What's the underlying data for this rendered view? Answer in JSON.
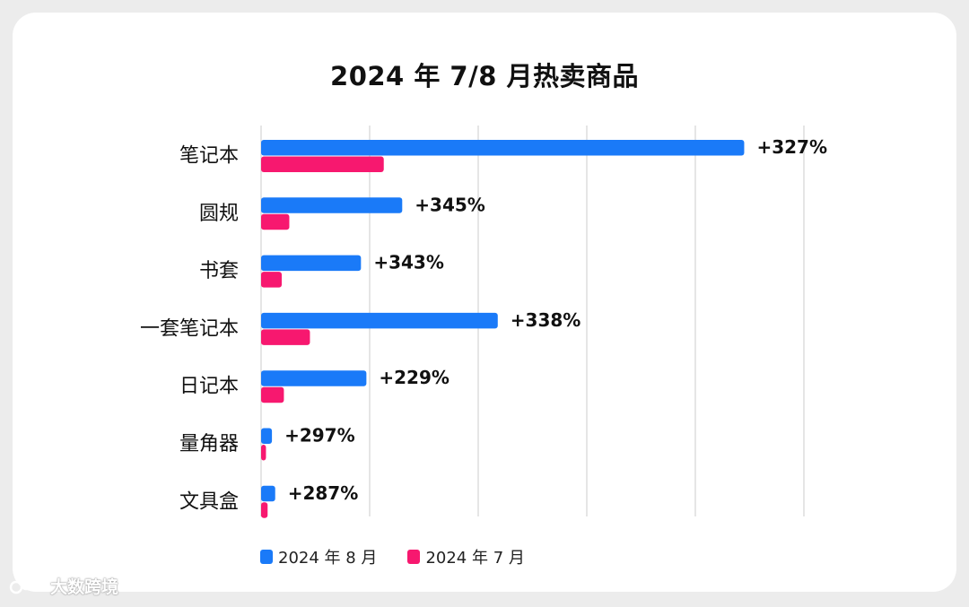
{
  "chart_data": {
    "type": "bar",
    "orientation": "horizontal",
    "title": "2024 年 7/8 月热卖商品",
    "categories": [
      "笔记本",
      "圆规",
      "书套",
      "一套笔记本",
      "日记本",
      "量角器",
      "文具盒"
    ],
    "series": [
      {
        "name": "2024 年 8 月",
        "color": "#1a7af8",
        "values": [
          44.5,
          13,
          9.2,
          21.8,
          9.7,
          1.0,
          1.3
        ]
      },
      {
        "name": "2024 年 7 月",
        "color": "#f7186f",
        "values": [
          11.3,
          2.6,
          1.9,
          4.5,
          2.1,
          0.45,
          0.6
        ]
      }
    ],
    "annotations": [
      "+327%",
      "+345%",
      "+343%",
      "+338%",
      "+229%",
      "+297%",
      "+287%"
    ],
    "xlim": [
      0,
      50
    ],
    "grid": true,
    "legend_position": "bottom"
  },
  "watermark": {
    "text": "大数跨境",
    "logo_icon": "brand-logo-icon"
  }
}
